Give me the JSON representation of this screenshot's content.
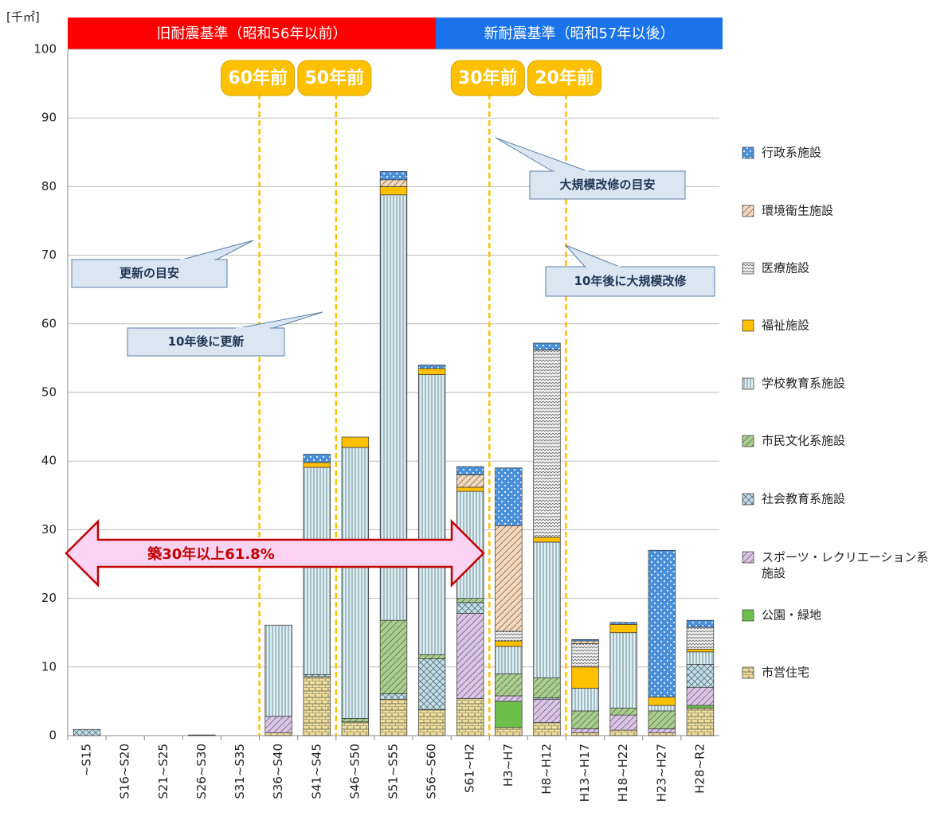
{
  "chart_data": {
    "type": "bar",
    "stacked": true,
    "unit": "[千㎡]",
    "categories": [
      "~S15",
      "S16~S20",
      "S21~S25",
      "S26~S30",
      "S31~S35",
      "S36~S40",
      "S41~S45",
      "S46~S50",
      "S51~S55",
      "S56~S60",
      "S61~H2",
      "H3~H7",
      "H8~H12",
      "H13~H17",
      "H18~H22",
      "H23~H27",
      "H28~R2"
    ],
    "series": [
      {
        "name": "市営住宅",
        "color": "#efdf9a",
        "values": [
          0,
          0,
          0,
          0.1,
          0,
          0.4,
          8.6,
          2.0,
          5.3,
          3.8,
          5.4,
          1.2,
          1.9,
          0.4,
          0.8,
          0.4,
          4.0
        ]
      },
      {
        "name": "公園・緑地",
        "color": "#6cbf4a",
        "values": [
          0,
          0,
          0,
          0,
          0,
          0,
          0,
          0,
          0,
          0,
          0,
          3.8,
          0,
          0,
          0,
          0,
          0.4
        ]
      },
      {
        "name": "スポーツ・レクリエーション系施設",
        "color": "#dcc4e6",
        "values": [
          0,
          0,
          0,
          0,
          0,
          2.4,
          0,
          0,
          0,
          0,
          12.4,
          0.8,
          3.4,
          0.6,
          2.2,
          0.6,
          2.6
        ]
      },
      {
        "name": "社会教育系施設",
        "color": "#bfe0ee",
        "values": [
          0.9,
          0,
          0,
          0,
          0,
          0,
          0.3,
          0,
          0.8,
          7.4,
          1.6,
          0,
          0.2,
          0,
          0,
          0,
          3.4
        ]
      },
      {
        "name": "市民文化系施設",
        "color": "#a9cf8c",
        "values": [
          0,
          0,
          0,
          0,
          0,
          0,
          0,
          0.5,
          10.7,
          0.6,
          0.6,
          3.2,
          2.9,
          2.6,
          1.0,
          2.6,
          0
        ]
      },
      {
        "name": "学校教育系施設",
        "color": "#d8f1f8",
        "values": [
          0,
          0,
          0,
          0,
          0,
          13.3,
          30.2,
          39.5,
          62,
          40.8,
          15.6,
          4,
          19.8,
          3.3,
          11,
          0.8,
          1.8
        ]
      },
      {
        "name": "福祉施設",
        "color": "#ffc000",
        "values": [
          0,
          0,
          0,
          0,
          0,
          0,
          0.7,
          1.5,
          1.2,
          0.9,
          0.6,
          0.8,
          0.7,
          3.1,
          1.2,
          1.2,
          0.4
        ]
      },
      {
        "name": "医療施設",
        "color": "#f2f2f2",
        "values": [
          0,
          0,
          0,
          0,
          0,
          0,
          0,
          0,
          0,
          0,
          0,
          1.4,
          27.3,
          3.4,
          0,
          0,
          3.2
        ]
      },
      {
        "name": "環境衛生施設",
        "color": "#f6d8bb",
        "values": [
          0,
          0,
          0,
          0,
          0,
          0,
          0,
          0,
          1.0,
          0,
          1.8,
          15.4,
          0,
          0.4,
          0,
          0,
          0
        ]
      },
      {
        "name": "行政系施設",
        "color": "#4a90d9",
        "values": [
          0,
          0,
          0,
          0,
          0,
          0,
          1.2,
          0,
          1.2,
          0.5,
          1.2,
          8.4,
          1.0,
          0.2,
          0.3,
          21.4,
          1.0
        ]
      }
    ],
    "ylim": [
      0,
      100
    ],
    "yticks": [
      0,
      10,
      20,
      30,
      40,
      50,
      60,
      70,
      80,
      90,
      100
    ],
    "grid": true,
    "annotations": {
      "old_standard": "旧耐震基準（昭和56年以前）",
      "new_standard": "新耐震基準（昭和57年以後）",
      "badges": [
        "60年前",
        "50年前",
        "30年前",
        "20年前"
      ],
      "callouts": [
        "大規模改修の目安",
        "更新の目安",
        "10年後に大規模改修",
        "10年後に更新"
      ],
      "arrow": "築30年以上61.8%"
    }
  }
}
